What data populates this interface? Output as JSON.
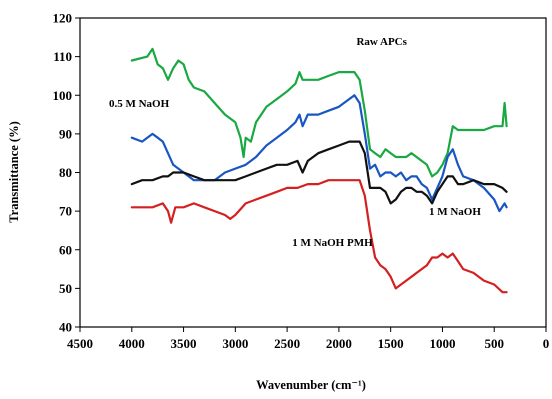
{
  "chart_data": {
    "type": "line",
    "xlabel": "Wavenumber (cm⁻¹)",
    "ylabel": "Transmittance (%)",
    "xlim": [
      4500,
      0
    ],
    "ylim": [
      40,
      120
    ],
    "x_ticks": [
      4500,
      4000,
      3500,
      3000,
      2500,
      2000,
      1500,
      1000,
      500,
      0
    ],
    "y_ticks": [
      40,
      50,
      60,
      70,
      80,
      90,
      100,
      110,
      120
    ],
    "x_tick_labels": [
      "4500",
      "4000",
      "3500",
      "3000",
      "2500",
      "2000",
      "1500",
      "1000",
      "500",
      "0"
    ],
    "y_tick_labels": [
      "40",
      "50",
      "60",
      "70",
      "80",
      "90",
      "100",
      "110",
      "120"
    ],
    "grid": false,
    "series": [
      {
        "name": "Raw APCs",
        "color": "#1aa843",
        "points": [
          [
            4000,
            109
          ],
          [
            3850,
            110
          ],
          [
            3800,
            112
          ],
          [
            3750,
            108
          ],
          [
            3700,
            107
          ],
          [
            3650,
            104
          ],
          [
            3600,
            107
          ],
          [
            3550,
            109
          ],
          [
            3500,
            108
          ],
          [
            3450,
            104
          ],
          [
            3400,
            102
          ],
          [
            3300,
            101
          ],
          [
            3200,
            98
          ],
          [
            3100,
            95
          ],
          [
            3000,
            93
          ],
          [
            2950,
            89
          ],
          [
            2920,
            84
          ],
          [
            2900,
            89
          ],
          [
            2850,
            88
          ],
          [
            2800,
            93
          ],
          [
            2750,
            95
          ],
          [
            2700,
            97
          ],
          [
            2600,
            99
          ],
          [
            2500,
            101
          ],
          [
            2420,
            103
          ],
          [
            2380,
            106
          ],
          [
            2350,
            104
          ],
          [
            2300,
            104
          ],
          [
            2200,
            104
          ],
          [
            2100,
            105
          ],
          [
            2000,
            106
          ],
          [
            1900,
            106
          ],
          [
            1850,
            106
          ],
          [
            1800,
            104
          ],
          [
            1750,
            96
          ],
          [
            1700,
            86
          ],
          [
            1650,
            85
          ],
          [
            1600,
            84
          ],
          [
            1550,
            86
          ],
          [
            1500,
            85
          ],
          [
            1450,
            84
          ],
          [
            1400,
            84
          ],
          [
            1350,
            84
          ],
          [
            1300,
            85
          ],
          [
            1250,
            84
          ],
          [
            1200,
            83
          ],
          [
            1150,
            82
          ],
          [
            1100,
            79
          ],
          [
            1050,
            80
          ],
          [
            1000,
            82
          ],
          [
            950,
            85
          ],
          [
            900,
            92
          ],
          [
            850,
            91
          ],
          [
            800,
            91
          ],
          [
            700,
            91
          ],
          [
            600,
            91
          ],
          [
            500,
            92
          ],
          [
            420,
            92
          ],
          [
            400,
            98
          ],
          [
            380,
            92
          ]
        ]
      },
      {
        "name": "0.5 M NaOH",
        "color": "#1a56c2",
        "points": [
          [
            4000,
            89
          ],
          [
            3900,
            88
          ],
          [
            3800,
            90
          ],
          [
            3750,
            89
          ],
          [
            3700,
            88
          ],
          [
            3650,
            85
          ],
          [
            3600,
            82
          ],
          [
            3500,
            80
          ],
          [
            3400,
            78
          ],
          [
            3300,
            78
          ],
          [
            3200,
            78
          ],
          [
            3100,
            80
          ],
          [
            3000,
            81
          ],
          [
            2900,
            82
          ],
          [
            2800,
            84
          ],
          [
            2700,
            87
          ],
          [
            2600,
            89
          ],
          [
            2500,
            91
          ],
          [
            2420,
            93
          ],
          [
            2380,
            95
          ],
          [
            2350,
            92
          ],
          [
            2300,
            95
          ],
          [
            2200,
            95
          ],
          [
            2100,
            96
          ],
          [
            2000,
            97
          ],
          [
            1900,
            99
          ],
          [
            1850,
            100
          ],
          [
            1800,
            98
          ],
          [
            1750,
            90
          ],
          [
            1700,
            81
          ],
          [
            1650,
            82
          ],
          [
            1600,
            79
          ],
          [
            1550,
            80
          ],
          [
            1500,
            80
          ],
          [
            1450,
            79
          ],
          [
            1400,
            80
          ],
          [
            1350,
            78
          ],
          [
            1300,
            79
          ],
          [
            1250,
            79
          ],
          [
            1200,
            77
          ],
          [
            1150,
            76
          ],
          [
            1100,
            73
          ],
          [
            1050,
            76
          ],
          [
            1000,
            79
          ],
          [
            950,
            84
          ],
          [
            900,
            86
          ],
          [
            850,
            82
          ],
          [
            800,
            79
          ],
          [
            700,
            78
          ],
          [
            600,
            76
          ],
          [
            500,
            73
          ],
          [
            450,
            70
          ],
          [
            400,
            72
          ],
          [
            380,
            71
          ]
        ]
      },
      {
        "name": "1 M NaOH",
        "color": "#111111",
        "points": [
          [
            4000,
            77
          ],
          [
            3900,
            78
          ],
          [
            3800,
            78
          ],
          [
            3700,
            79
          ],
          [
            3650,
            79
          ],
          [
            3600,
            80
          ],
          [
            3500,
            80
          ],
          [
            3400,
            79
          ],
          [
            3300,
            78
          ],
          [
            3200,
            78
          ],
          [
            3100,
            78
          ],
          [
            3000,
            78
          ],
          [
            2900,
            79
          ],
          [
            2800,
            80
          ],
          [
            2700,
            81
          ],
          [
            2600,
            82
          ],
          [
            2500,
            82
          ],
          [
            2400,
            83
          ],
          [
            2350,
            80
          ],
          [
            2300,
            83
          ],
          [
            2200,
            85
          ],
          [
            2100,
            86
          ],
          [
            2000,
            87
          ],
          [
            1900,
            88
          ],
          [
            1800,
            88
          ],
          [
            1750,
            85
          ],
          [
            1700,
            76
          ],
          [
            1650,
            76
          ],
          [
            1600,
            76
          ],
          [
            1550,
            75
          ],
          [
            1500,
            72
          ],
          [
            1450,
            73
          ],
          [
            1400,
            75
          ],
          [
            1350,
            76
          ],
          [
            1300,
            76
          ],
          [
            1250,
            75
          ],
          [
            1200,
            75
          ],
          [
            1150,
            74
          ],
          [
            1100,
            72
          ],
          [
            1050,
            75
          ],
          [
            1000,
            77
          ],
          [
            950,
            79
          ],
          [
            900,
            79
          ],
          [
            850,
            77
          ],
          [
            800,
            77
          ],
          [
            700,
            78
          ],
          [
            600,
            77
          ],
          [
            500,
            77
          ],
          [
            420,
            76
          ],
          [
            380,
            75
          ]
        ]
      },
      {
        "name": "1 M NaOH PMH",
        "color": "#d42020",
        "points": [
          [
            4000,
            71
          ],
          [
            3900,
            71
          ],
          [
            3800,
            71
          ],
          [
            3700,
            72
          ],
          [
            3650,
            70
          ],
          [
            3620,
            67
          ],
          [
            3580,
            71
          ],
          [
            3500,
            71
          ],
          [
            3400,
            72
          ],
          [
            3300,
            71
          ],
          [
            3200,
            70
          ],
          [
            3100,
            69
          ],
          [
            3050,
            68
          ],
          [
            3000,
            69
          ],
          [
            2900,
            72
          ],
          [
            2800,
            73
          ],
          [
            2700,
            74
          ],
          [
            2600,
            75
          ],
          [
            2500,
            76
          ],
          [
            2400,
            76
          ],
          [
            2300,
            77
          ],
          [
            2200,
            77
          ],
          [
            2100,
            78
          ],
          [
            2000,
            78
          ],
          [
            1900,
            78
          ],
          [
            1800,
            78
          ],
          [
            1750,
            74
          ],
          [
            1700,
            65
          ],
          [
            1650,
            58
          ],
          [
            1600,
            56
          ],
          [
            1550,
            55
          ],
          [
            1500,
            53
          ],
          [
            1450,
            50
          ],
          [
            1400,
            51
          ],
          [
            1350,
            52
          ],
          [
            1300,
            53
          ],
          [
            1250,
            54
          ],
          [
            1200,
            55
          ],
          [
            1150,
            56
          ],
          [
            1100,
            58
          ],
          [
            1050,
            58
          ],
          [
            1000,
            59
          ],
          [
            950,
            58
          ],
          [
            900,
            59
          ],
          [
            850,
            57
          ],
          [
            800,
            55
          ],
          [
            700,
            54
          ],
          [
            600,
            52
          ],
          [
            500,
            51
          ],
          [
            420,
            49
          ],
          [
            380,
            49
          ]
        ]
      }
    ],
    "annotations": [
      {
        "text": "Raw APCs",
        "x": 1830,
        "y": 113
      },
      {
        "text": "0.5 M NaOH",
        "x": 4220,
        "y": 97
      },
      {
        "text": "1 M NaOH",
        "x": 1130,
        "y": 69
      },
      {
        "text": "1 M NaOH PMH",
        "x": 2450,
        "y": 61
      }
    ]
  }
}
